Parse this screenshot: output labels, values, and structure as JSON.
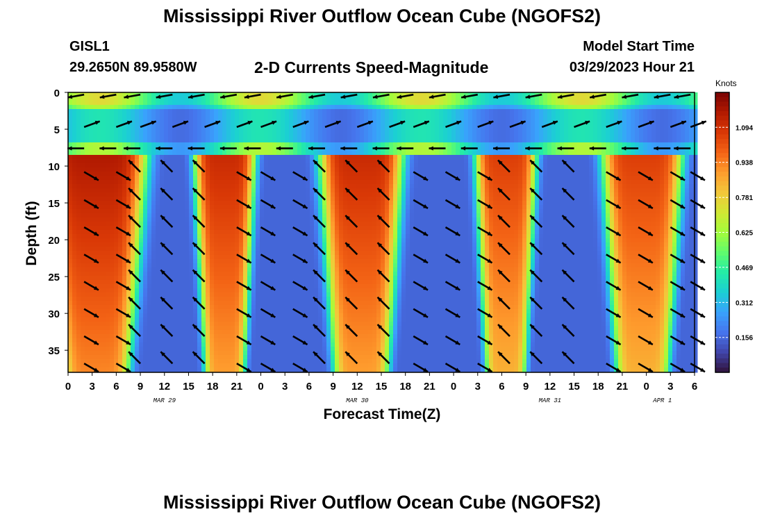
{
  "header": {
    "title": "Mississippi River Outflow Ocean Cube (NGOFS2)",
    "station": "GISL1",
    "coords": "29.2650N  89.9580W",
    "subtitle": "2-D Currents Speed-Magnitude",
    "model_start_label": "Model Start Time",
    "model_start_value": "03/29/2023 Hour 21"
  },
  "footer": {
    "title_repeat": "Mississippi River Outflow Ocean Cube (NGOFS2)"
  },
  "chart_data": {
    "type": "heatmap",
    "title": "2-D Currents Speed-Magnitude",
    "xlabel": "Forecast Time(Z)",
    "ylabel": "Depth (ft)",
    "x_units": "hours since 2023-03-29 00Z",
    "xlim": [
      0,
      78
    ],
    "ylim": [
      0,
      38
    ],
    "y_inverted": true,
    "x_ticks": [
      0,
      3,
      6,
      9,
      12,
      15,
      18,
      21,
      24,
      27,
      30,
      33,
      36,
      39,
      42,
      45,
      48,
      51,
      54,
      57,
      60,
      63,
      66,
      69,
      72,
      75,
      78
    ],
    "x_tick_labels": [
      "0",
      "3",
      "6",
      "9",
      "12",
      "15",
      "18",
      "21",
      "0",
      "3",
      "6",
      "9",
      "12",
      "15",
      "18",
      "21",
      "0",
      "3",
      "6",
      "9",
      "12",
      "15",
      "18",
      "21",
      "0",
      "3",
      "6"
    ],
    "y_ticks": [
      0,
      5,
      10,
      15,
      20,
      25,
      30,
      35
    ],
    "y_tick_labels": [
      "0",
      "5",
      "10",
      "15",
      "20",
      "25",
      "30",
      "35"
    ],
    "date_labels": [
      {
        "x": 12,
        "label": "MAR 29"
      },
      {
        "x": 36,
        "label": "MAR 30"
      },
      {
        "x": 60,
        "label": "MAR 31"
      },
      {
        "x": 74,
        "label": "APR 1"
      }
    ],
    "colorbar": {
      "title": "Knots",
      "ticks": [
        0.156,
        0.312,
        0.469,
        0.625,
        0.781,
        0.938,
        1.094
      ],
      "range": [
        0.0,
        1.25
      ],
      "colormap": [
        "#30123b",
        "#4145ab",
        "#4675ed",
        "#39a2fc",
        "#1bcfd4",
        "#24eca6",
        "#61fc6c",
        "#a4fc3b",
        "#d1e834",
        "#f3c63a",
        "#fe9b2d",
        "#f36315",
        "#d93806",
        "#b11901",
        "#7a0403"
      ]
    },
    "speed_grid_note": "Speed magnitude (knots) sampled at depth rows x hour columns",
    "depth_rows": [
      0,
      4.5,
      8,
      12,
      17,
      22,
      27,
      32,
      37
    ],
    "hour_columns": [
      0,
      1.5,
      3,
      4.5,
      6,
      7.5,
      9,
      10.5,
      12,
      13.5,
      15,
      16.5,
      18,
      19.5,
      21,
      22.5,
      24,
      25.5,
      27,
      28.5,
      30,
      31.5,
      33,
      34.5,
      36,
      37.5,
      39,
      40.5,
      42,
      43.5,
      45,
      46.5,
      48,
      49.5,
      51,
      52.5,
      54,
      55.5,
      57,
      58.5,
      60,
      61.5,
      63,
      64.5,
      66,
      67.5,
      69,
      70.5,
      72,
      73.5,
      75,
      76.5,
      78
    ],
    "vector_hours": [
      2,
      6,
      9,
      13,
      17,
      21,
      24,
      28,
      32,
      36,
      40,
      43,
      47,
      51,
      55,
      59,
      63,
      67,
      71,
      75,
      77.5
    ],
    "vector_depths": [
      0.3,
      4.7,
      7.6,
      10.8,
      14.6,
      18.3,
      22,
      25.7,
      29.4,
      33.1,
      36.8
    ]
  }
}
